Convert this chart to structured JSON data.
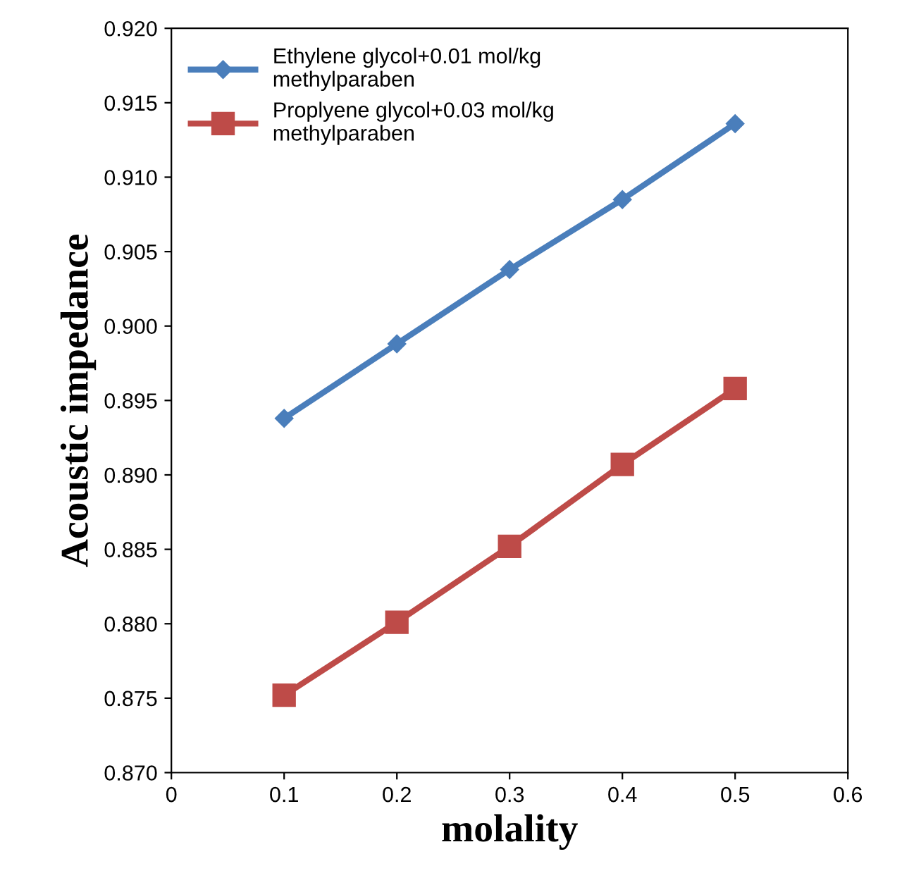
{
  "chart_data": {
    "type": "line",
    "xlabel": "molality",
    "ylabel": "Acoustic impedance",
    "x": [
      0.1,
      0.2,
      0.3,
      0.4,
      0.5
    ],
    "series": [
      {
        "name": "Ethylene glycol+0.01 mol/kg\nmethylparaben",
        "color": "#4a7ebb",
        "marker": "diamond",
        "values": [
          0.8938,
          0.8988,
          0.9038,
          0.9085,
          0.9136
        ]
      },
      {
        "name": "Proplyene glycol+0.03 mol/kg\nmethylparaben",
        "color": "#be4b48",
        "marker": "square",
        "values": [
          0.8752,
          0.8801,
          0.8852,
          0.8907,
          0.8958
        ]
      }
    ],
    "xlim": [
      0,
      0.6
    ],
    "xticks": [
      0,
      0.1,
      0.2,
      0.3,
      0.4,
      0.5,
      0.6
    ],
    "ylim": [
      0.87,
      0.92
    ],
    "yticks": [
      {
        "value": 0.87,
        "label": "0.870"
      },
      {
        "value": 0.875,
        "label": "0.875"
      },
      {
        "value": 0.88,
        "label": "0.880"
      },
      {
        "value": 0.885,
        "label": "0.885"
      },
      {
        "value": 0.89,
        "label": "0.890"
      },
      {
        "value": 0.895,
        "label": "0.895"
      },
      {
        "value": 0.9,
        "label": "0.900"
      },
      {
        "value": 0.905,
        "label": "0.905"
      },
      {
        "value": 0.91,
        "label": "0.910"
      },
      {
        "value": 0.915,
        "label": "0.915"
      },
      {
        "value": 0.92,
        "label": "0.920"
      }
    ],
    "grid": false,
    "legend": "top left",
    "line_style": "solid"
  }
}
